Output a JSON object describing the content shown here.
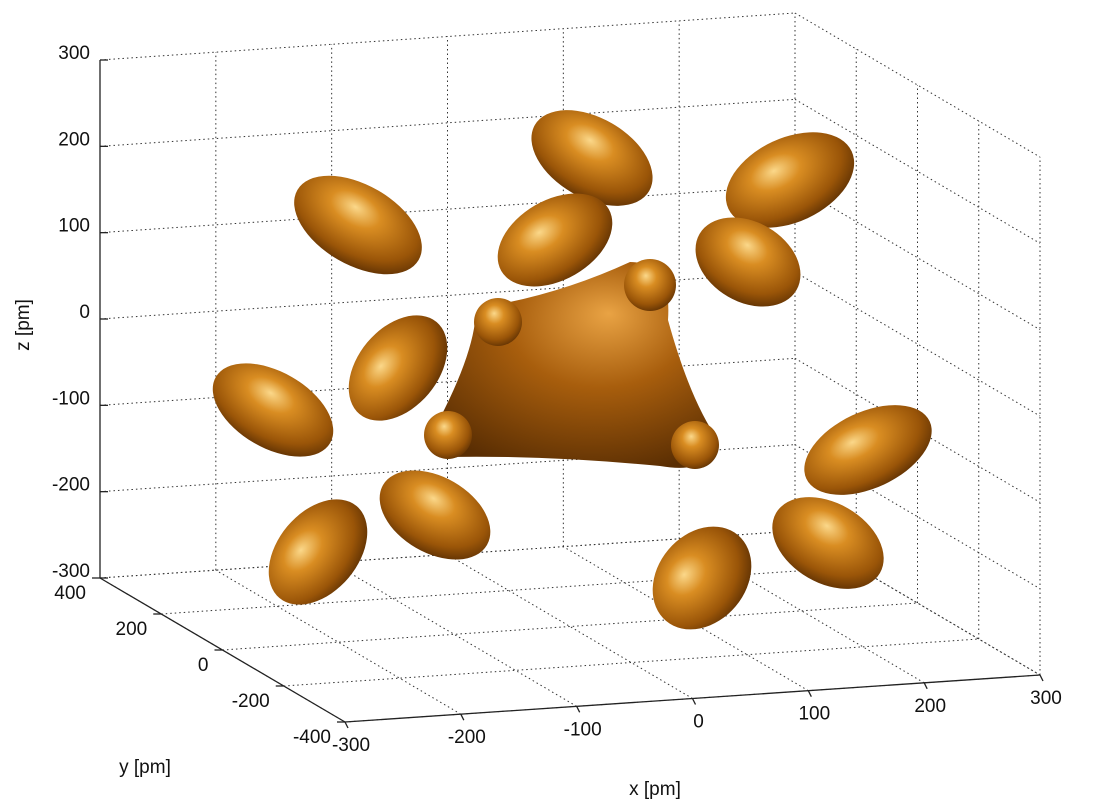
{
  "chart_data": {
    "type": "isosurface",
    "xlabel": "x [pm]",
    "ylabel": "y [pm]",
    "zlabel": "z [pm]",
    "xlim": [
      -300,
      300
    ],
    "ylim": [
      -400,
      400
    ],
    "zlim": [
      -300,
      300
    ],
    "xticks": [
      -300,
      -200,
      -100,
      0,
      100,
      200,
      300
    ],
    "yticks": [
      -400,
      -200,
      0,
      200,
      400
    ],
    "zticks": [
      -300,
      -200,
      -100,
      0,
      100,
      200,
      300
    ],
    "grid": true,
    "color": "#c97a14"
  }
}
